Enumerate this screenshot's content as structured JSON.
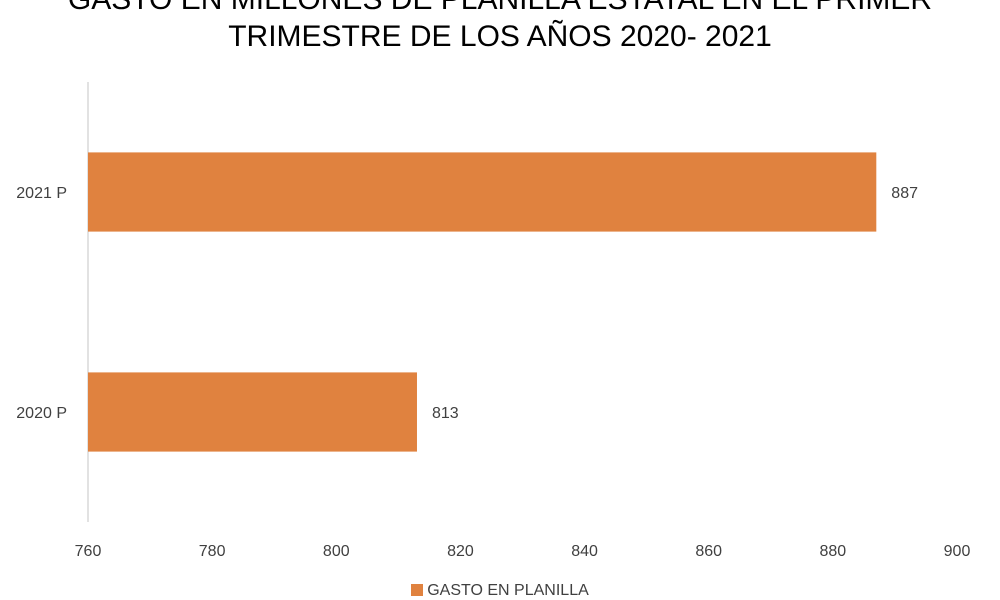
{
  "chart_data": {
    "type": "bar",
    "orientation": "horizontal",
    "title": [
      "GASTO EN MILLONES DE PLANILLA ESTATAL EN EL PRIMER",
      "TRIMESTRE DE LOS AÑOS 2020- 2021"
    ],
    "categories": [
      "2021 P",
      "2020 P"
    ],
    "series": [
      {
        "name": "GASTO EN PLANILLA",
        "values": [
          887,
          813
        ],
        "color": "#E0823F"
      }
    ],
    "xlim": [
      760,
      900
    ],
    "xticks": [
      760,
      780,
      800,
      820,
      840,
      860,
      880,
      900
    ],
    "xticklabels": [
      "760",
      "780",
      "800",
      "820",
      "840",
      "860",
      "880",
      "900"
    ],
    "data_labels": [
      "887",
      "813"
    ],
    "grid": false,
    "legend_position": "bottom"
  }
}
